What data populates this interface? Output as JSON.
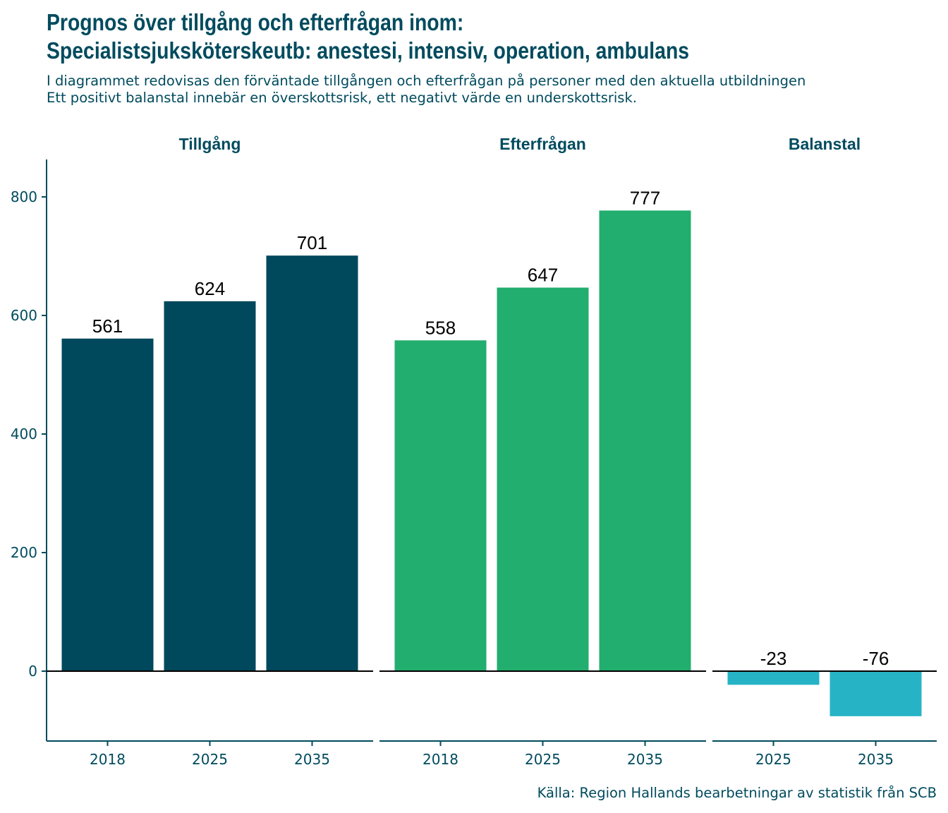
{
  "title_line1": "Prognos över tillgång och efterfrågan inom:",
  "title_line2": "Specialistsjuksköterskeutb: anestesi, intensiv, operation, ambulans",
  "subtitle_line1": "I diagrammet redovisas den förväntade tillgången och efterfrågan på personer med den aktuella utbildningen",
  "subtitle_line2": "Ett positivt balanstal innebär en överskottsrisk, ett negativt värde en underskottsrisk.",
  "caption": "Källa: Region Hallands bearbetningar av statistik från SCB",
  "colors": {
    "text": "#004B5E",
    "tillgang": "#00485C",
    "efterfragan": "#22AE6E",
    "balanstal": "#27B3C6"
  },
  "chart_data": {
    "type": "bar",
    "ylim": [
      -120,
      860
    ],
    "yticks": [
      0,
      200,
      400,
      600,
      800
    ],
    "grid": false,
    "legend": "none",
    "facets": [
      {
        "name": "Tillgång",
        "categories": [
          "2018",
          "2025",
          "2035"
        ],
        "values": [
          561,
          624,
          701
        ],
        "color": "#00485C"
      },
      {
        "name": "Efterfrågan",
        "categories": [
          "2018",
          "2025",
          "2035"
        ],
        "values": [
          558,
          647,
          777
        ],
        "color": "#22AE6E"
      },
      {
        "name": "Balanstal",
        "categories": [
          "2025",
          "2035"
        ],
        "values": [
          -23,
          -76
        ],
        "color": "#27B3C6"
      }
    ]
  }
}
